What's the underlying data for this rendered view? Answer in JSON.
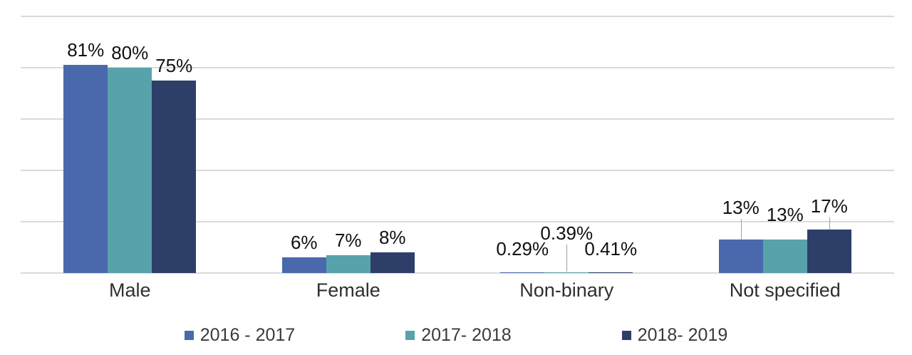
{
  "chart_data": {
    "type": "bar",
    "title": "",
    "xlabel": "",
    "ylabel": "",
    "categories": [
      "Male",
      "Female",
      "Non-binary",
      "Not specified"
    ],
    "series": [
      {
        "name": "2016 - 2017",
        "color": "#4a69ad",
        "values": [
          81,
          6,
          0.29,
          13
        ],
        "labels": [
          "81%",
          "6%",
          "0.29%",
          "13%"
        ]
      },
      {
        "name": "2017- 2018",
        "color": "#58a3ab",
        "values": [
          80,
          7,
          0.39,
          13
        ],
        "labels": [
          "80%",
          "7%",
          "0.39%",
          "13%"
        ]
      },
      {
        "name": "2018- 2019",
        "color": "#2d3e69",
        "values": [
          75,
          8,
          0.41,
          17
        ],
        "labels": [
          "75%",
          "8%",
          "0.41%",
          "17%"
        ]
      }
    ],
    "ylim": [
      0,
      100
    ],
    "gridlines": [
      0,
      20,
      40,
      60,
      80,
      100
    ],
    "grid": true,
    "legend_position": "bottom",
    "label_layout": {
      "lift": [
        [
          0,
          0,
          12,
          24
        ],
        [
          0,
          0,
          34,
          14
        ],
        [
          0,
          0,
          12,
          12
        ]
      ],
      "leader": [
        [
          "none",
          "none",
          "none",
          "to-bar"
        ],
        [
          "none",
          "none",
          "to-axis",
          "none"
        ],
        [
          "none",
          "none",
          "none",
          "to-bar"
        ]
      ]
    },
    "colors": {
      "background": "#ffffff",
      "gridline": "#dadada",
      "leader_line": "#a0a0a0",
      "value_label": "#111111",
      "category_label": "#2f2f2f",
      "legend_text": "#3a3a3a"
    }
  }
}
